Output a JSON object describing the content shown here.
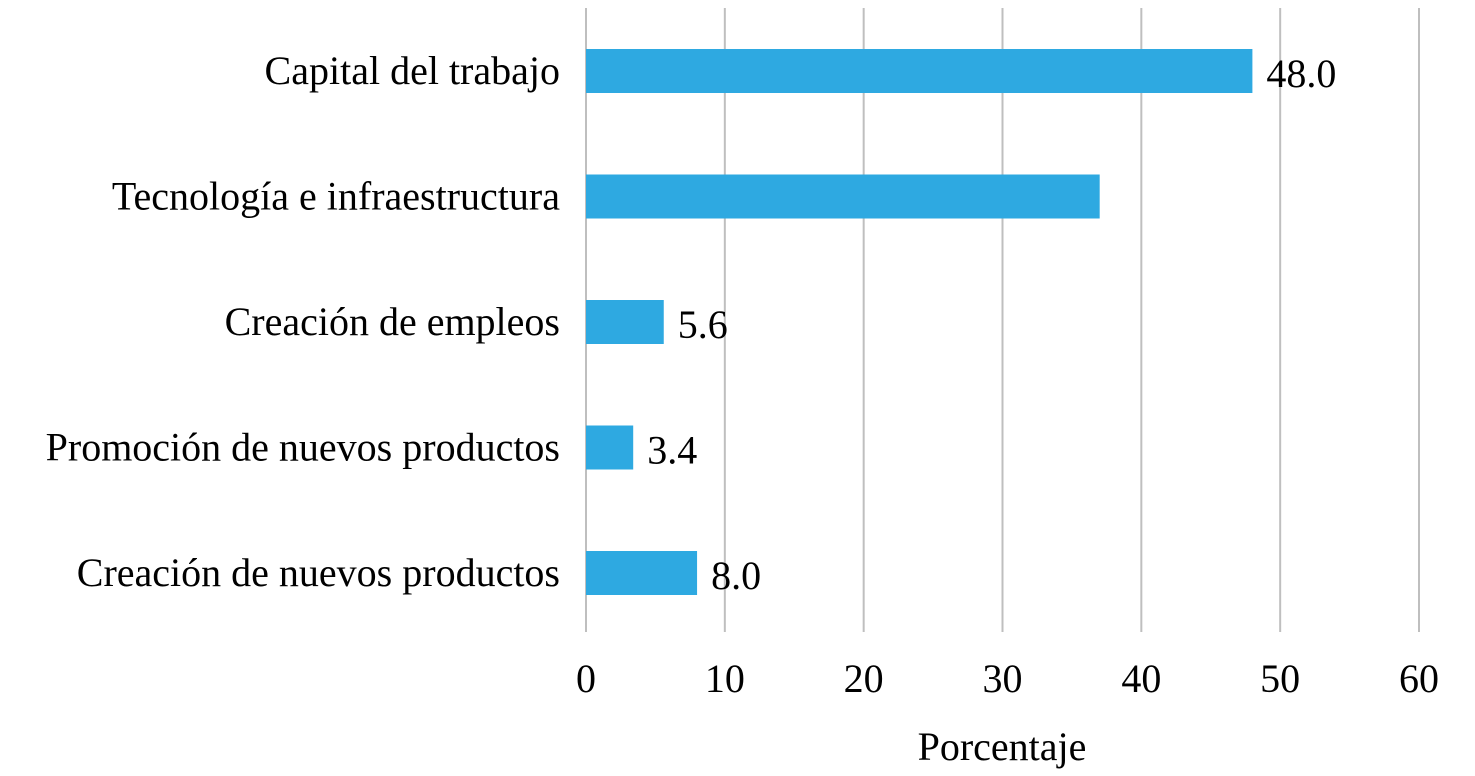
{
  "chart_data": {
    "type": "bar",
    "orientation": "horizontal",
    "title": "",
    "xlabel": "Porcentaje",
    "ylabel": "",
    "xlim": [
      0,
      60
    ],
    "xticks": [
      "0",
      "10",
      "20",
      "30",
      "40",
      "50",
      "60"
    ],
    "grid": true,
    "legend": "none",
    "bar_color": "#2EA9E1",
    "gridline_color": "#BFBFBF",
    "categories": [
      "Capital del trabajo",
      "Tecnología e infraestructura",
      "Creación de empleos",
      "Promoción de nuevos productos",
      "Creación de nuevos productos"
    ],
    "values": [
      48.0,
      37.0,
      5.6,
      3.4,
      8.0
    ],
    "data_labels": [
      "48.0",
      "",
      "5.6",
      "3.4",
      "8.0"
    ]
  }
}
